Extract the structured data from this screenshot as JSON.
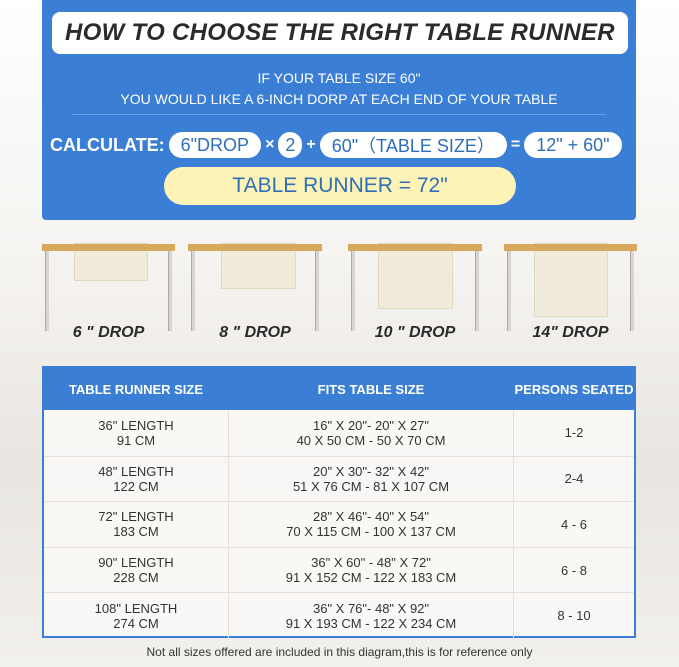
{
  "title": "HOW TO CHOOSE THE RIGHT TABLE RUNNER",
  "intro": [
    "IF YOUR TABLE SIZE 60\"",
    "YOU WOULD LIKE A 6-INCH DORP AT EACH END OF YOUR TABLE"
  ],
  "calc": {
    "label": "CALCULATE:",
    "drop": "6\"DROP",
    "times": "×",
    "multiplier": "2",
    "plus": "+",
    "table": "60\"（TABLE SIZE）",
    "equals": "=",
    "sum": "12\" + 60\"",
    "result": "TABLE RUNNER = 72\""
  },
  "drops": [
    "6 \" DROP",
    "8 \" DROP",
    "10 \" DROP",
    "14\" DROP"
  ],
  "table": {
    "headers": [
      "TABLE RUNNER SIZE",
      "FITS TABLE SIZE",
      "PERSONS SEATED"
    ],
    "rows": [
      {
        "size": "36\" LENGTH",
        "size_cm": "91 CM",
        "fits": "16\" X 20\"- 20\" X 27\"",
        "fits_cm": "40 X 50 CM - 50 X 70 CM",
        "persons": "1-2"
      },
      {
        "size": "48\" LENGTH",
        "size_cm": "122 CM",
        "fits": "20\" X 30\"- 32\" X 42\"",
        "fits_cm": "51 X 76 CM - 81 X 107 CM",
        "persons": "2-4"
      },
      {
        "size": "72\" LENGTH",
        "size_cm": "183 CM",
        "fits": "28\" X 46\"- 40\" X 54\"",
        "fits_cm": "70 X 115 CM - 100 X 137 CM",
        "persons": "4 - 6"
      },
      {
        "size": "90\" LENGTH",
        "size_cm": "228 CM",
        "fits": "36\" X 60\" - 48\" X 72\"",
        "fits_cm": "91 X 152 CM - 122 X 183 CM",
        "persons": "6 - 8"
      },
      {
        "size": "108\" LENGTH",
        "size_cm": "274 CM",
        "fits": "36\" X 76\"- 48\" X 92\"",
        "fits_cm": "91 X 193 CM - 122 X 234 CM",
        "persons": "8 - 10"
      }
    ]
  },
  "footer": "Not all sizes offered are included in this diagram,this is for reference only",
  "colors": {
    "blue": "#3a7fd5",
    "result_bg": "#fdf3b6",
    "table_top": "#d6a95d"
  }
}
